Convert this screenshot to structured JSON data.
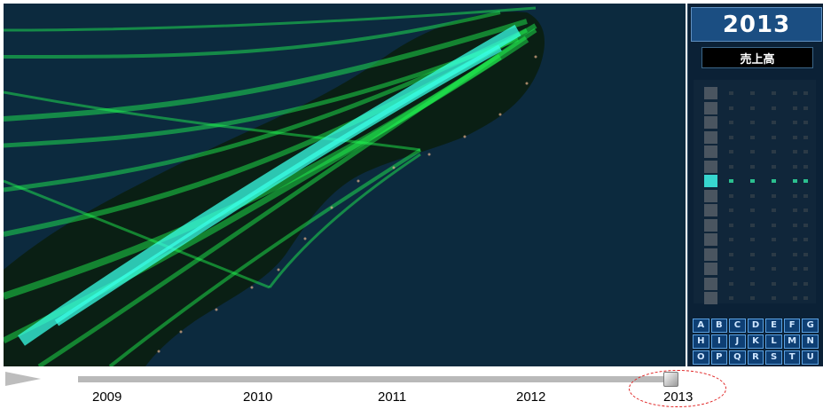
{
  "panel": {
    "year": "2013",
    "metric_label": "売上高",
    "legend_active_index": 6,
    "legend_rows": 15,
    "letters": [
      "A",
      "B",
      "C",
      "D",
      "E",
      "F",
      "G",
      "H",
      "I",
      "J",
      "K",
      "L",
      "M",
      "N",
      "O",
      "P",
      "Q",
      "R",
      "S",
      "T",
      "U"
    ]
  },
  "timeline": {
    "years": [
      "2009",
      "2010",
      "2011",
      "2012",
      "2013"
    ],
    "selected_year": "2013",
    "position": 1.0
  },
  "colors": {
    "map_background": "#0c2a3e",
    "flow_green": "#22ff55",
    "flow_cyan": "#38ffe6",
    "highlight_ring": "#e02020"
  }
}
